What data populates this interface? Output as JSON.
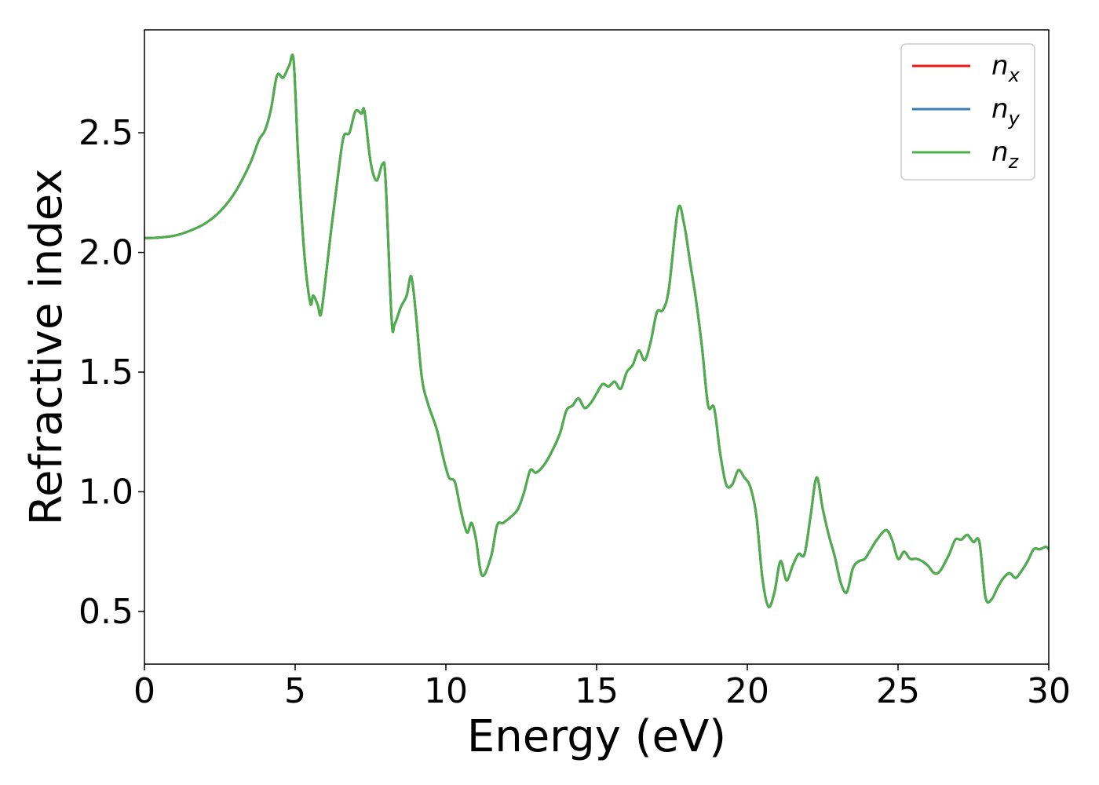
{
  "chart_data": {
    "type": "line",
    "title": "",
    "xlabel": "Energy (eV)",
    "ylabel": "Refractive index",
    "xlim": [
      0,
      30
    ],
    "ylim": [
      0.28,
      2.93
    ],
    "x_ticks": [
      0,
      5,
      10,
      15,
      20,
      25,
      30
    ],
    "x_tick_labels": [
      "0",
      "5",
      "10",
      "15",
      "20",
      "25",
      "30"
    ],
    "y_ticks": [
      0.5,
      1.0,
      1.5,
      2.0,
      2.5
    ],
    "y_tick_labels": [
      "0.5",
      "1.0",
      "1.5",
      "2.0",
      "2.5"
    ],
    "grid": false,
    "legend_position": "top-right",
    "colors": {
      "nx": "#e41a1c",
      "ny": "#377eb8",
      "nz": "#4daf4a"
    },
    "legend": [
      {
        "base": "n",
        "sub": "x",
        "color": "#e41a1c"
      },
      {
        "base": "n",
        "sub": "y",
        "color": "#377eb8"
      },
      {
        "base": "n",
        "sub": "z",
        "color": "#4daf4a"
      }
    ],
    "x": [
      0,
      0.5,
      1,
      1.5,
      2,
      2.5,
      3,
      3.5,
      3.8,
      4,
      4.2,
      4.4,
      4.6,
      4.8,
      4.95,
      5.1,
      5.3,
      5.5,
      5.6,
      5.75,
      5.85,
      6,
      6.2,
      6.4,
      6.6,
      6.8,
      7,
      7.2,
      7.3,
      7.5,
      7.7,
      7.9,
      8,
      8.2,
      8.3,
      8.5,
      8.7,
      8.85,
      9,
      9.2,
      9.4,
      9.7,
      9.9,
      10.1,
      10.3,
      10.5,
      10.7,
      10.85,
      11,
      11.2,
      11.5,
      11.7,
      11.9,
      12.2,
      12.4,
      12.6,
      12.8,
      13,
      13.3,
      13.6,
      13.8,
      14,
      14.2,
      14.4,
      14.6,
      14.8,
      15,
      15.2,
      15.4,
      15.6,
      15.8,
      16,
      16.2,
      16.4,
      16.6,
      16.8,
      17,
      17.2,
      17.4,
      17.7,
      17.9,
      18.1,
      18.3,
      18.5,
      18.7,
      18.9,
      19.1,
      19.3,
      19.5,
      19.7,
      19.9,
      20.1,
      20.3,
      20.5,
      20.7,
      20.9,
      21.1,
      21.3,
      21.5,
      21.7,
      21.9,
      22.1,
      22.3,
      22.5,
      22.7,
      22.9,
      23.1,
      23.3,
      23.5,
      23.7,
      23.9,
      24.1,
      24.3,
      24.6,
      24.8,
      25,
      25.2,
      25.4,
      25.6,
      25.8,
      26,
      26.2,
      26.4,
      26.7,
      26.9,
      27.1,
      27.3,
      27.5,
      27.7,
      27.9,
      28.1,
      28.3,
      28.5,
      28.7,
      28.9,
      29.1,
      29.3,
      29.5,
      29.7,
      29.9,
      30
    ],
    "series": [
      {
        "name": "n_x",
        "color": "#e41a1c",
        "values": [
          2.06,
          2.062,
          2.07,
          2.09,
          2.12,
          2.17,
          2.25,
          2.37,
          2.47,
          2.51,
          2.6,
          2.74,
          2.73,
          2.78,
          2.8,
          2.4,
          2.0,
          1.79,
          1.82,
          1.78,
          1.74,
          1.88,
          2.1,
          2.3,
          2.48,
          2.5,
          2.59,
          2.58,
          2.59,
          2.38,
          2.3,
          2.37,
          2.3,
          1.72,
          1.7,
          1.77,
          1.82,
          1.9,
          1.75,
          1.48,
          1.37,
          1.26,
          1.15,
          1.06,
          1.04,
          0.92,
          0.83,
          0.87,
          0.8,
          0.65,
          0.73,
          0.86,
          0.87,
          0.9,
          0.93,
          1.0,
          1.09,
          1.08,
          1.12,
          1.19,
          1.25,
          1.34,
          1.36,
          1.39,
          1.35,
          1.37,
          1.41,
          1.45,
          1.44,
          1.46,
          1.43,
          1.5,
          1.53,
          1.59,
          1.55,
          1.63,
          1.75,
          1.76,
          1.85,
          2.18,
          2.12,
          1.96,
          1.8,
          1.6,
          1.36,
          1.35,
          1.16,
          1.03,
          1.03,
          1.09,
          1.06,
          1.02,
          0.9,
          0.64,
          0.52,
          0.58,
          0.71,
          0.63,
          0.69,
          0.74,
          0.74,
          0.9,
          1.06,
          0.93,
          0.82,
          0.73,
          0.62,
          0.58,
          0.68,
          0.71,
          0.72,
          0.76,
          0.8,
          0.84,
          0.8,
          0.72,
          0.75,
          0.72,
          0.72,
          0.71,
          0.69,
          0.66,
          0.67,
          0.74,
          0.8,
          0.8,
          0.82,
          0.79,
          0.79,
          0.56,
          0.55,
          0.6,
          0.64,
          0.66,
          0.64,
          0.67,
          0.71,
          0.76,
          0.76,
          0.77,
          0.76
        ]
      },
      {
        "name": "n_y",
        "color": "#377eb8",
        "values": [
          2.06,
          2.062,
          2.07,
          2.09,
          2.12,
          2.17,
          2.25,
          2.37,
          2.47,
          2.51,
          2.6,
          2.74,
          2.73,
          2.78,
          2.8,
          2.4,
          2.0,
          1.79,
          1.82,
          1.78,
          1.74,
          1.88,
          2.1,
          2.3,
          2.48,
          2.5,
          2.59,
          2.58,
          2.59,
          2.38,
          2.3,
          2.37,
          2.3,
          1.72,
          1.7,
          1.77,
          1.82,
          1.9,
          1.75,
          1.48,
          1.37,
          1.26,
          1.15,
          1.06,
          1.04,
          0.92,
          0.83,
          0.87,
          0.8,
          0.65,
          0.73,
          0.86,
          0.87,
          0.9,
          0.93,
          1.0,
          1.09,
          1.08,
          1.12,
          1.19,
          1.25,
          1.34,
          1.36,
          1.39,
          1.35,
          1.37,
          1.41,
          1.45,
          1.44,
          1.46,
          1.43,
          1.5,
          1.53,
          1.59,
          1.55,
          1.63,
          1.75,
          1.76,
          1.85,
          2.18,
          2.12,
          1.96,
          1.8,
          1.6,
          1.36,
          1.35,
          1.16,
          1.03,
          1.03,
          1.09,
          1.06,
          1.02,
          0.9,
          0.64,
          0.52,
          0.58,
          0.71,
          0.63,
          0.69,
          0.74,
          0.74,
          0.9,
          1.06,
          0.93,
          0.82,
          0.73,
          0.62,
          0.58,
          0.68,
          0.71,
          0.72,
          0.76,
          0.8,
          0.84,
          0.8,
          0.72,
          0.75,
          0.72,
          0.72,
          0.71,
          0.69,
          0.66,
          0.67,
          0.74,
          0.8,
          0.8,
          0.82,
          0.79,
          0.79,
          0.56,
          0.55,
          0.6,
          0.64,
          0.66,
          0.64,
          0.67,
          0.71,
          0.76,
          0.76,
          0.77,
          0.76
        ]
      },
      {
        "name": "n_z",
        "color": "#4daf4a",
        "values": [
          2.06,
          2.062,
          2.07,
          2.09,
          2.12,
          2.17,
          2.25,
          2.37,
          2.47,
          2.51,
          2.6,
          2.74,
          2.73,
          2.78,
          2.8,
          2.4,
          2.0,
          1.79,
          1.82,
          1.78,
          1.74,
          1.88,
          2.1,
          2.3,
          2.48,
          2.5,
          2.59,
          2.58,
          2.59,
          2.38,
          2.3,
          2.37,
          2.3,
          1.72,
          1.7,
          1.77,
          1.82,
          1.9,
          1.75,
          1.48,
          1.37,
          1.26,
          1.15,
          1.06,
          1.04,
          0.92,
          0.83,
          0.87,
          0.8,
          0.65,
          0.73,
          0.86,
          0.87,
          0.9,
          0.93,
          1.0,
          1.09,
          1.08,
          1.12,
          1.19,
          1.25,
          1.34,
          1.36,
          1.39,
          1.35,
          1.37,
          1.41,
          1.45,
          1.44,
          1.46,
          1.43,
          1.5,
          1.53,
          1.59,
          1.55,
          1.63,
          1.75,
          1.76,
          1.85,
          2.18,
          2.12,
          1.96,
          1.8,
          1.6,
          1.36,
          1.35,
          1.16,
          1.03,
          1.03,
          1.09,
          1.06,
          1.02,
          0.9,
          0.64,
          0.52,
          0.58,
          0.71,
          0.63,
          0.69,
          0.74,
          0.74,
          0.9,
          1.06,
          0.93,
          0.82,
          0.73,
          0.62,
          0.58,
          0.68,
          0.71,
          0.72,
          0.76,
          0.8,
          0.84,
          0.8,
          0.72,
          0.75,
          0.72,
          0.72,
          0.71,
          0.69,
          0.66,
          0.67,
          0.74,
          0.8,
          0.8,
          0.82,
          0.79,
          0.79,
          0.56,
          0.55,
          0.6,
          0.64,
          0.66,
          0.64,
          0.67,
          0.71,
          0.76,
          0.76,
          0.77,
          0.76
        ]
      }
    ]
  }
}
